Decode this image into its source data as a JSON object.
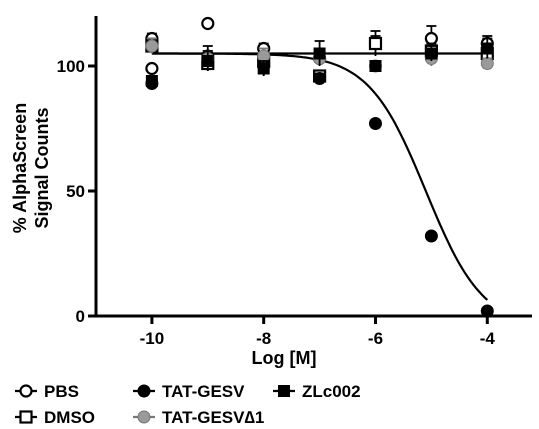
{
  "chart_data": {
    "type": "scatter",
    "xlabel": "Log [M]",
    "ylabel_lines": [
      "% AlphaScreen",
      "Signal Counts"
    ],
    "xlim": [
      -11,
      -3.2
    ],
    "ylim": [
      0,
      120
    ],
    "x_ticks": [
      -10,
      -8,
      -6,
      -4
    ],
    "y_ticks": [
      0,
      50,
      100
    ],
    "x_tick_labels": [
      "-10",
      "-8",
      "-6",
      "-4"
    ],
    "y_tick_labels": [
      "0",
      "50",
      "100"
    ],
    "grid": false,
    "legend_position": "bottom",
    "series": [
      {
        "name": "PBS",
        "marker": "circle-open",
        "points": [
          {
            "x": -10,
            "y": 111,
            "err": 2
          },
          {
            "x": -10,
            "y": 99,
            "err": 0
          },
          {
            "x": -9,
            "y": 117,
            "err": 0
          },
          {
            "x": -8,
            "y": 107,
            "err": 2
          },
          {
            "x": -7,
            "y": 103,
            "err": 3
          },
          {
            "x": -6,
            "y": 109,
            "err": 3
          },
          {
            "x": -5,
            "y": 111,
            "err": 5
          },
          {
            "x": -4,
            "y": 109,
            "err": 3
          }
        ]
      },
      {
        "name": "DMSO",
        "marker": "square-open",
        "points": [
          {
            "x": -10,
            "y": 108,
            "err": 3
          },
          {
            "x": -9,
            "y": 101,
            "err": 3
          },
          {
            "x": -8,
            "y": 102,
            "err": 3
          },
          {
            "x": -7,
            "y": 96,
            "err": 2
          },
          {
            "x": -6,
            "y": 109,
            "err": 5
          },
          {
            "x": -5,
            "y": 106,
            "err": 3
          },
          {
            "x": -4,
            "y": 105,
            "err": 3
          }
        ]
      },
      {
        "name": "TAT-GESV",
        "marker": "circle-filled",
        "fit": "sigmoid",
        "fit_params": {
          "top": 105,
          "bottom": -5,
          "logIC50": -5.1,
          "hill": 0.85
        },
        "points": [
          {
            "x": -10,
            "y": 93,
            "err": 0
          },
          {
            "x": -9,
            "y": 104,
            "err": 4
          },
          {
            "x": -8,
            "y": 100,
            "err": 4
          },
          {
            "x": -7,
            "y": 95,
            "err": 2
          },
          {
            "x": -6,
            "y": 77,
            "err": 0
          },
          {
            "x": -5,
            "y": 32,
            "err": 0
          },
          {
            "x": -4,
            "y": 2,
            "err": 0
          }
        ]
      },
      {
        "name": "TAT-GESV∆1",
        "marker": "circle-gray",
        "points": [
          {
            "x": -10,
            "y": 108,
            "err": 3
          },
          {
            "x": -9,
            "y": 103,
            "err": 3
          },
          {
            "x": -8,
            "y": 104,
            "err": 3
          },
          {
            "x": -7,
            "y": 103,
            "err": 2
          },
          {
            "x": -6,
            "y": 100,
            "err": 2
          },
          {
            "x": -5,
            "y": 103,
            "err": 3
          },
          {
            "x": -4,
            "y": 101,
            "err": 2
          }
        ]
      },
      {
        "name": "ZLc002",
        "marker": "square-filled",
        "fit": "flat",
        "fit_value": 105,
        "points": [
          {
            "x": -10,
            "y": 94,
            "err": 0
          },
          {
            "x": -9,
            "y": 102,
            "err": 4
          },
          {
            "x": -8,
            "y": 99,
            "err": 3
          },
          {
            "x": -7,
            "y": 105,
            "err": 5
          },
          {
            "x": -6,
            "y": 100,
            "err": 2
          },
          {
            "x": -5,
            "y": 105,
            "err": 3
          },
          {
            "x": -4,
            "y": 107,
            "err": 4
          }
        ]
      }
    ]
  },
  "legend": {
    "rows": [
      [
        "PBS",
        "TAT-GESV",
        "ZLc002"
      ],
      [
        "DMSO",
        "TAT-GESV∆1"
      ]
    ]
  },
  "colors": {
    "axis": "#000000",
    "gray_marker": "#9a9a9a",
    "open_fill": "#ffffff"
  }
}
